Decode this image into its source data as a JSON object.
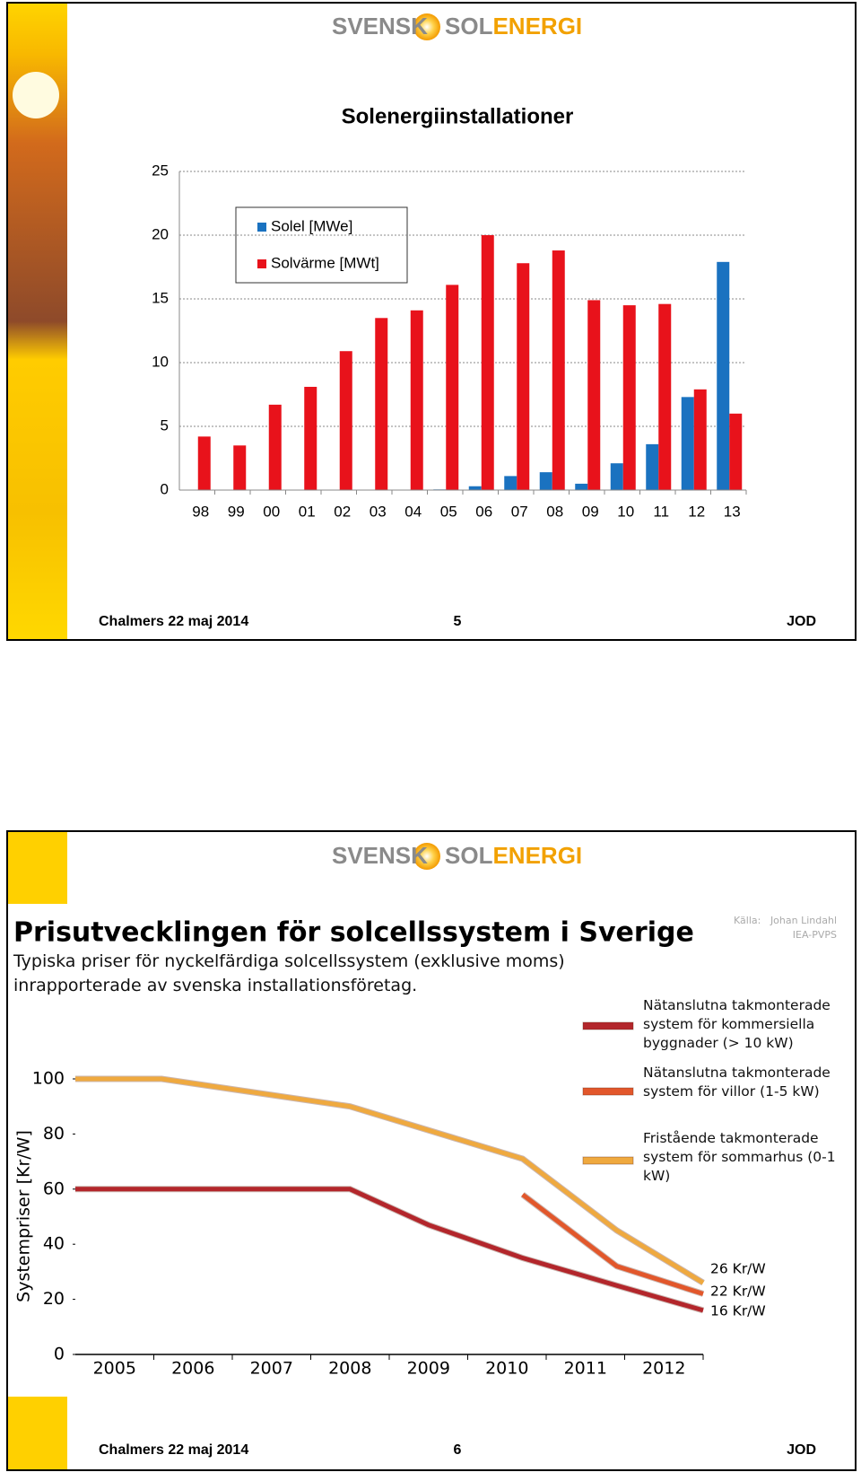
{
  "slides": [
    {
      "logo": [
        "SVENSK",
        "SOL",
        "ENERGI"
      ],
      "footer": {
        "left": "Chalmers 22 maj 2014",
        "page": "5",
        "right": "JOD"
      }
    },
    {
      "logo": [
        "SVENSK",
        "SOL",
        "ENERGI"
      ],
      "footer": {
        "left": "Chalmers 22 maj 2014",
        "page": "6",
        "right": "JOD"
      },
      "source": [
        "Källa:",
        "Johan Lindahl",
        "IEA-PVPS"
      ]
    }
  ],
  "chart_data": [
    {
      "type": "bar",
      "title": "Solenergiinstallationer",
      "categories": [
        "98",
        "99",
        "00",
        "01",
        "02",
        "03",
        "04",
        "05",
        "06",
        "07",
        "08",
        "09",
        "10",
        "11",
        "12",
        "13"
      ],
      "series": [
        {
          "name": "Solel [MWe]",
          "color": "#1a72c0",
          "values": [
            0,
            0,
            0,
            0,
            0,
            0,
            0,
            0.05,
            0.3,
            1.1,
            1.4,
            0.5,
            2.1,
            3.6,
            7.3,
            17.9
          ]
        },
        {
          "name": "Solvärme [MWt]",
          "color": "#e8121b",
          "values": [
            4.2,
            3.5,
            6.7,
            8.1,
            10.9,
            13.5,
            14.1,
            16.1,
            20,
            17.8,
            18.8,
            14.9,
            14.5,
            14.6,
            7.9,
            6.0
          ]
        }
      ],
      "ylim": [
        0,
        25
      ],
      "yticks": [
        0,
        5,
        10,
        15,
        20,
        25
      ],
      "grid": true,
      "legend": "top-left"
    },
    {
      "type": "line",
      "title": "Prisutvecklingen för solcellssystem i Sverige",
      "subtitle": "Typiska priser för nyckelfärdiga solcellssystem (exklusive moms) inrapporterade av svenska installationsföretag.",
      "y_label": "Systempriser [Kr/W]",
      "xlim": [
        2004.5,
        2012.5
      ],
      "xticks": [
        2005,
        2006,
        2007,
        2008,
        2009,
        2010,
        2011,
        2012
      ],
      "ylim": [
        0,
        100
      ],
      "yticks": [
        0,
        20,
        40,
        60,
        80,
        100
      ],
      "series": [
        {
          "name": "Nätanslutna takmonterade system för kommersiella byggnader (> 10 kW)",
          "color": "#b3262b",
          "x": [
            2004.5,
            2008,
            2009,
            2010.2,
            2011.4,
            2012.5
          ],
          "values": [
            60,
            60,
            47,
            35,
            25,
            16
          ]
        },
        {
          "name": "Nätanslutna takmonterade system för villor (1-5 kW)",
          "color": "#e2572b",
          "x": [
            2010.2,
            2011.4,
            2012.5
          ],
          "values": [
            58,
            32,
            22
          ]
        },
        {
          "name": "Fristående takmonterade system för sommarhus (0-1 kW)",
          "color": "#efa93f",
          "x": [
            2004.5,
            2005.6,
            2008,
            2010.2,
            2011.4,
            2012.5
          ],
          "values": [
            100,
            100,
            90,
            71,
            45,
            26
          ]
        }
      ],
      "annotations": [
        "26 Kr/W",
        "22 Kr/W",
        "16 Kr/W"
      ]
    }
  ]
}
